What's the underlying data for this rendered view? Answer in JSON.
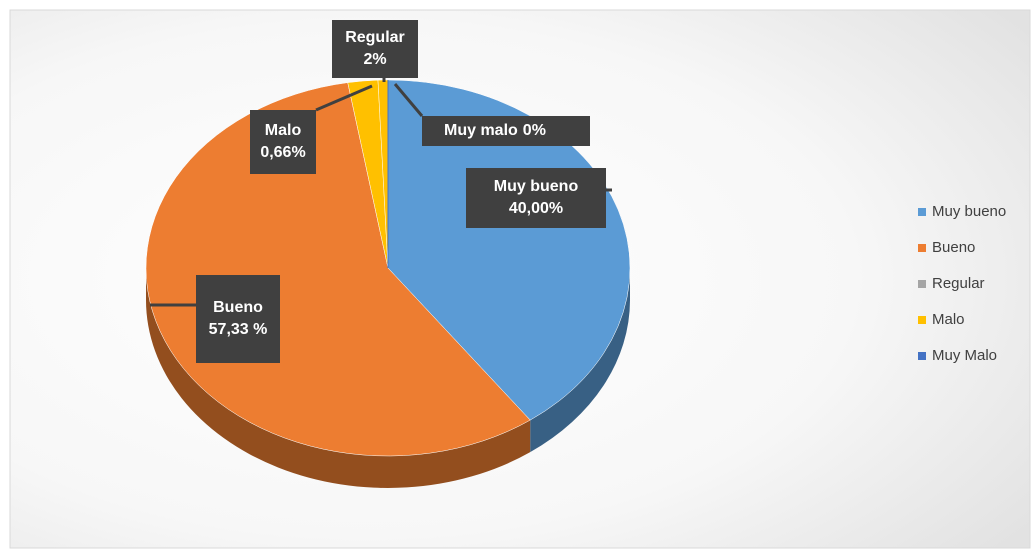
{
  "chart_data": {
    "type": "pie",
    "categories": [
      "Muy bueno",
      "Bueno",
      "Regular",
      "Malo",
      "Muy Malo"
    ],
    "values": [
      40,
      57.33,
      2,
      0.66,
      0
    ],
    "value_labels": [
      "40,00%",
      "57,33 %",
      "2%",
      "0,66%",
      "0%"
    ],
    "label_names": [
      "Muy bueno",
      "Bueno",
      "Regular",
      "Malo",
      "Muy malo"
    ],
    "colors": [
      "#5b9bd5",
      "#ed7d31",
      "#ffc000",
      "#ffc000",
      "#4472c4"
    ],
    "legend_colors": [
      "#5b9bd5",
      "#ed7d31",
      "#a5a5a5",
      "#ffc000",
      "#4472c4"
    ],
    "legend": "right"
  }
}
